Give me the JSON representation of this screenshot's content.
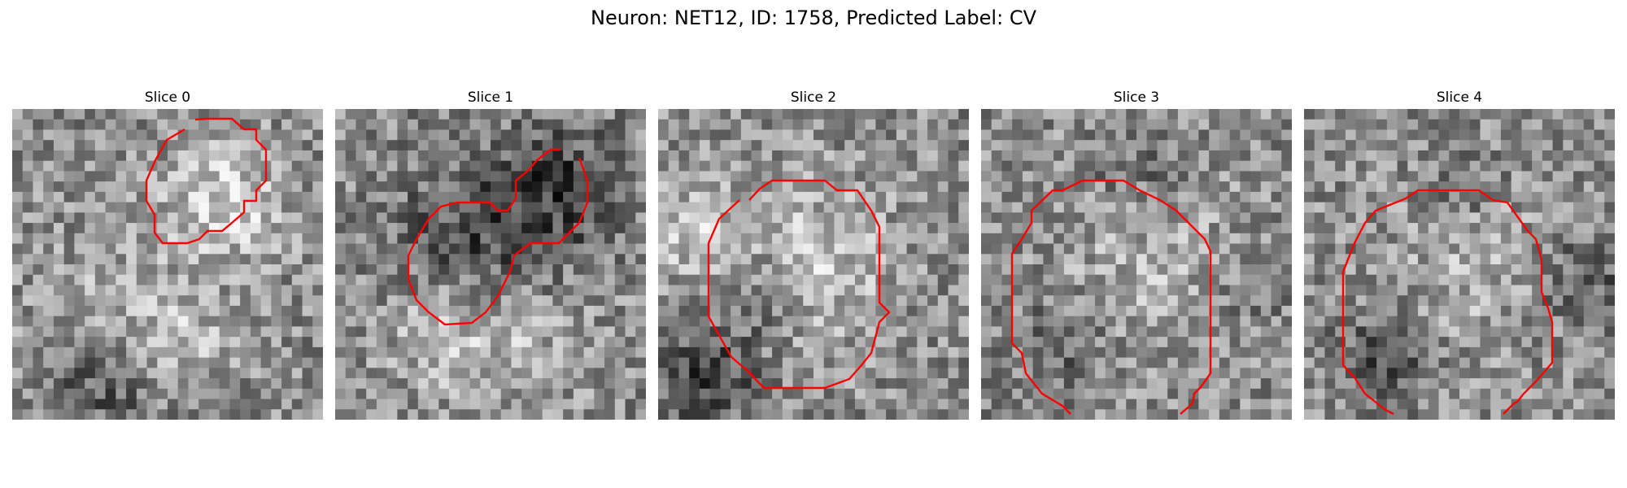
{
  "figure": {
    "title": "Neuron: NET12, ID: 1758, Predicted Label: CV",
    "contour_color": "#ff0000"
  },
  "panels": [
    {
      "title": "Slice 0"
    },
    {
      "title": "Slice 1"
    },
    {
      "title": "Slice 2"
    },
    {
      "title": "Slice 3"
    },
    {
      "title": "Slice 4"
    }
  ]
}
